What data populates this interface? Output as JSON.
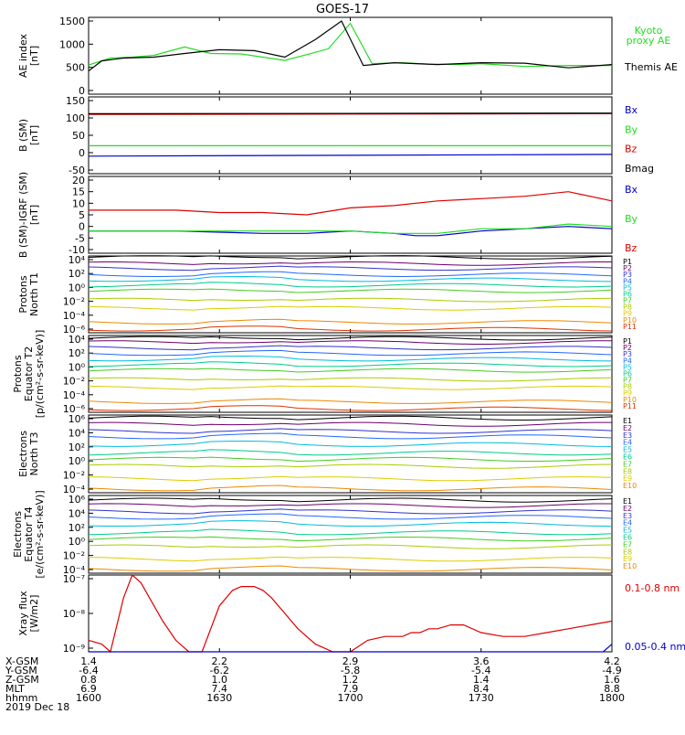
{
  "title": "GOES-17",
  "colors": {
    "black": "#000000",
    "green": "#22dd22",
    "red": "#dd0000",
    "blue": "#0000cc",
    "P": [
      "#000000",
      "#6a006a",
      "#3333cc",
      "#2266ff",
      "#00bbdd",
      "#00cc88",
      "#44cc22",
      "#aacc00",
      "#ddcc00",
      "#ee8800",
      "#dd3300",
      "#cc0000"
    ]
  },
  "x_axis": {
    "ticks": [
      "1600",
      "1630",
      "1700",
      "1730",
      "1800"
    ],
    "rows": [
      {
        "label": "X-GSM",
        "values": [
          "1.4",
          "2.2",
          "2.9",
          "3.6",
          "4.2"
        ]
      },
      {
        "label": "Y-GSM",
        "values": [
          "-6.4",
          "-6.2",
          "-5.8",
          "-5.4",
          "-4.9"
        ]
      },
      {
        "label": "Z-GSM",
        "values": [
          "0.8",
          "1.0",
          "1.2",
          "1.4",
          "1.6"
        ]
      },
      {
        "label": "MLT",
        "values": [
          "6.9",
          "7.4",
          "7.9",
          "8.4",
          "8.8"
        ]
      },
      {
        "label": "hhmm",
        "values": [
          "1600",
          "1630",
          "1700",
          "1730",
          "1800"
        ]
      }
    ],
    "date": "2019 Dec 18"
  },
  "chart_data": [
    {
      "type": "line",
      "ylabel": "AE index\n[nT]",
      "ylim": [
        0,
        1500
      ],
      "yticks": [
        "1500",
        "1000",
        "500",
        "0"
      ],
      "series": [
        {
          "name": "Kyoto proxy AE",
          "color_key": "green",
          "x": [
            0,
            5,
            10,
            15,
            22,
            28,
            35,
            45,
            55,
            60,
            65,
            72,
            78,
            85,
            90,
            100,
            110,
            120
          ],
          "y": [
            550,
            700,
            720,
            760,
            940,
            800,
            790,
            650,
            900,
            1450,
            580,
            600,
            570,
            560,
            580,
            520,
            540,
            540
          ]
        },
        {
          "name": "Themis AE",
          "color_key": "black",
          "x": [
            0,
            3,
            8,
            15,
            22,
            30,
            38,
            45,
            52,
            58,
            63,
            70,
            80,
            90,
            100,
            110,
            120
          ],
          "y": [
            420,
            640,
            700,
            720,
            800,
            880,
            860,
            720,
            1100,
            1500,
            540,
            600,
            560,
            600,
            590,
            490,
            560
          ]
        }
      ],
      "legend": [
        {
          "text": "Kyoto",
          "color_key": "green"
        },
        {
          "text": "proxy AE",
          "color_key": "green"
        },
        {
          "text": "Themis AE",
          "color_key": "black"
        }
      ]
    },
    {
      "type": "line",
      "ylabel": "B (SM)\n[nT]",
      "ylim": [
        -50,
        150
      ],
      "yticks": [
        "150",
        "100",
        "50",
        "0",
        "-50"
      ],
      "series": [
        {
          "name": "Bx",
          "color_key": "blue",
          "x": [
            0,
            120
          ],
          "y": [
            -10,
            -5
          ]
        },
        {
          "name": "By",
          "color_key": "green",
          "x": [
            0,
            120
          ],
          "y": [
            20,
            20
          ]
        },
        {
          "name": "Bz",
          "color_key": "red",
          "x": [
            0,
            120
          ],
          "y": [
            110,
            112
          ]
        },
        {
          "name": "Bmag",
          "color_key": "black",
          "x": [
            0,
            120
          ],
          "y": [
            112,
            114
          ]
        }
      ],
      "legend": [
        {
          "text": "Bx",
          "color_key": "blue"
        },
        {
          "text": "By",
          "color_key": "green"
        },
        {
          "text": "Bz",
          "color_key": "red"
        },
        {
          "text": "Bmag",
          "color_key": "black"
        }
      ]
    },
    {
      "type": "line",
      "ylabel": "B (SM)-IGRF (SM)\n[nT]",
      "ylim": [
        -10,
        20
      ],
      "yticks": [
        "20",
        "15",
        "10",
        "5",
        "0",
        "-5",
        "-10"
      ],
      "series": [
        {
          "name": "Bx",
          "color_key": "blue",
          "x": [
            0,
            10,
            20,
            30,
            40,
            50,
            60,
            70,
            75,
            80,
            90,
            100,
            110,
            120
          ],
          "y": [
            -2,
            -2,
            -2,
            -2.5,
            -3,
            -3,
            -2,
            -3,
            -4,
            -4,
            -2,
            -1,
            0,
            -1
          ]
        },
        {
          "name": "By",
          "color_key": "green",
          "x": [
            0,
            10,
            20,
            30,
            40,
            50,
            60,
            70,
            80,
            90,
            100,
            110,
            120
          ],
          "y": [
            -2,
            -2,
            -2,
            -2,
            -2,
            -2,
            -2,
            -3,
            -3,
            -1,
            -1,
            1,
            0
          ]
        },
        {
          "name": "Bz",
          "color_key": "red",
          "x": [
            0,
            10,
            20,
            30,
            40,
            50,
            60,
            70,
            80,
            90,
            100,
            110,
            120
          ],
          "y": [
            7,
            7,
            7,
            6,
            6,
            5,
            8,
            9,
            11,
            12,
            13,
            15,
            11
          ]
        }
      ],
      "legend": [
        {
          "text": "Bx",
          "color_key": "blue"
        },
        {
          "text": "By",
          "color_key": "green"
        },
        {
          "text": "Bz",
          "color_key": "red"
        }
      ]
    },
    {
      "type": "line",
      "scale": "log",
      "ylabel": "Protons\nNorth T1",
      "ylim_exp": [
        -7,
        4
      ],
      "yticks": [
        "10⁴",
        "10²",
        "10⁰",
        "10⁻²",
        "10⁻⁴",
        "10⁻⁶"
      ],
      "legend": [
        "P1",
        "P2",
        "P3",
        "P4",
        "P5",
        "P6",
        "P7",
        "P8",
        "P9",
        "P10",
        "P11"
      ],
      "level_exp": [
        3.8,
        2.9,
        2.2,
        1.3,
        0.6,
        -0.2,
        -1.0,
        -2.3,
        -3.5,
        -5.5,
        -6.5
      ]
    },
    {
      "type": "line",
      "scale": "log",
      "ylabel": "Protons\nEquator T2\n[p/(cm²-s-sr-keV)]",
      "ylim_exp": [
        -7,
        4
      ],
      "yticks": [
        "10⁴",
        "10²",
        "10⁰",
        "10⁻²",
        "10⁻⁴",
        "10⁻⁶"
      ],
      "legend": [
        "P1",
        "P2",
        "P3",
        "P4",
        "P5",
        "P6",
        "P7",
        "P8",
        "P9",
        "P10",
        "P11"
      ],
      "level_exp": [
        3.6,
        3.0,
        2.2,
        1.4,
        0.6,
        -0.2,
        -1.0,
        -2.3,
        -3.5,
        -5.5,
        -6.5
      ]
    },
    {
      "type": "line",
      "scale": "log",
      "ylabel": "Electrons\nNorth T3",
      "ylim_exp": [
        -4,
        6
      ],
      "yticks": [
        "10⁶",
        "10⁴",
        "10²",
        "10⁰",
        "10⁻²",
        "10⁻⁴"
      ],
      "legend": [
        "E1",
        "E2",
        "E3",
        "E4",
        "E5",
        "E6",
        "E7",
        "E8",
        "E9",
        "E10"
      ],
      "level_exp": [
        5.6,
        4.8,
        3.9,
        3.2,
        2.2,
        1.1,
        0.3,
        -0.6,
        -2.2,
        -3.5
      ]
    },
    {
      "type": "line",
      "scale": "log",
      "ylabel": "Electrons\nEquator T4\n[e/(cm²-s-sr-keV)]",
      "ylim_exp": [
        -4,
        6
      ],
      "yticks": [
        "10⁶",
        "10⁴",
        "10²",
        "10⁰",
        "10⁻²",
        "10⁻⁴"
      ],
      "legend": [
        "E1",
        "E2",
        "E3",
        "E4",
        "E5",
        "E6",
        "E7",
        "E8",
        "E9",
        "E10"
      ],
      "level_exp": [
        5.4,
        4.7,
        3.9,
        3.2,
        2.3,
        1.2,
        0.4,
        -0.6,
        -2.2,
        -3.5
      ]
    },
    {
      "type": "line",
      "scale": "log",
      "ylabel": "Xray flux\n[W/m2]",
      "ylim_exp": [
        -9,
        -7
      ],
      "yticks": [
        "10⁻⁷",
        "10⁻⁸",
        "10⁻⁹"
      ],
      "series": [
        {
          "name": "0.1-0.8 nm",
          "color_key": "red",
          "x": [
            0,
            3,
            5,
            8,
            10,
            12,
            14,
            17,
            20,
            23,
            26,
            30,
            33,
            35,
            38,
            40,
            42,
            45,
            48,
            52,
            56,
            60,
            64,
            68,
            72,
            74,
            76,
            78,
            80,
            83,
            86,
            90,
            95,
            100,
            105,
            110,
            115,
            120
          ],
          "y": [
            -8.7,
            -8.8,
            -9.0,
            -7.6,
            -7.0,
            -7.2,
            -7.6,
            -8.2,
            -8.7,
            -9.0,
            -9.1,
            -7.8,
            -7.4,
            -7.3,
            -7.3,
            -7.4,
            -7.6,
            -8.0,
            -8.4,
            -8.8,
            -9.1,
            -9.0,
            -8.7,
            -8.6,
            -8.6,
            -8.5,
            -8.5,
            -8.4,
            -8.4,
            -8.3,
            -8.3,
            -8.5,
            -8.6,
            -8.6,
            -8.5,
            -8.4,
            -8.3,
            -8.2
          ]
        },
        {
          "name": "0.05-0.4 nm",
          "color_key": "blue",
          "x": [
            0,
            5,
            10,
            118,
            120
          ],
          "y": [
            -9.1,
            -9.0,
            -9.1,
            -9.1,
            -8.8
          ]
        }
      ],
      "legend": [
        {
          "text": "0.1-0.8 nm",
          "color_key": "red"
        },
        {
          "text": "0.05-0.4 nm",
          "color_key": "blue"
        }
      ]
    }
  ]
}
